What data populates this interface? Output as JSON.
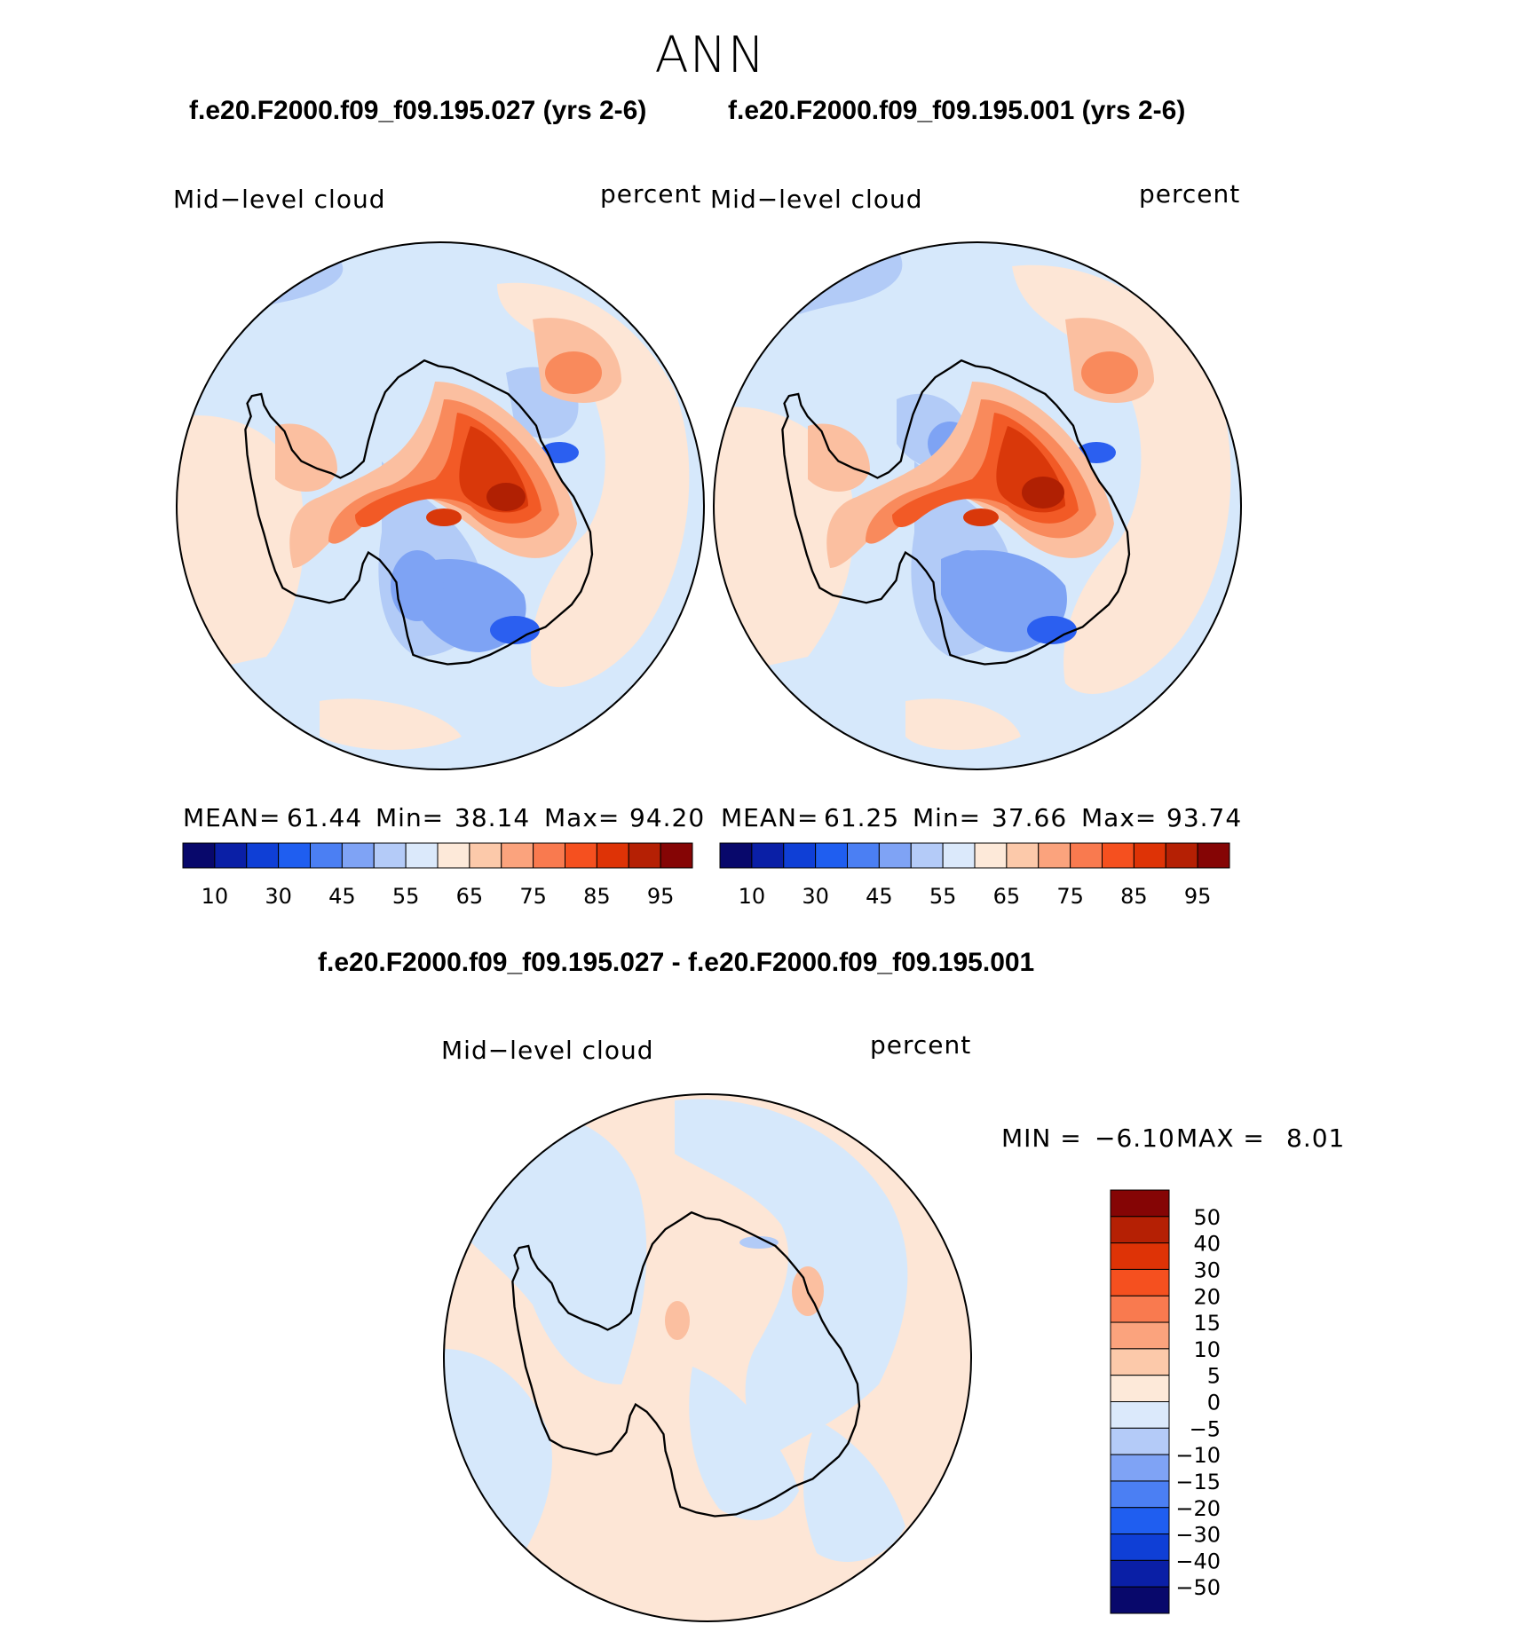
{
  "title": "ANN",
  "panels": [
    {
      "title": "f.e20.F2000.f09_f09.195.027 (yrs 2-6)",
      "variable": "Mid−level cloud",
      "units": "percent",
      "stats": {
        "mean_label": "MEAN=",
        "mean": "61.44",
        "min_label": "Min=",
        "min": "38.14",
        "max_label": "Max=",
        "max": "94.20"
      }
    },
    {
      "title": "f.e20.F2000.f09_f09.195.001 (yrs 2-6)",
      "variable": "Mid−level cloud",
      "units": "percent",
      "stats": {
        "mean_label": "MEAN=",
        "mean": "61.25",
        "min_label": "Min=",
        "min": "37.66",
        "max_label": "Max=",
        "max": "93.74"
      }
    },
    {
      "title": "f.e20.F2000.f09_f09.195.027 - f.e20.F2000.f09_f09.195.001",
      "variable": "Mid−level cloud",
      "units": "percent",
      "stats": {
        "min_label": "MIN =",
        "min": "−6.10",
        "max_label": "MAX =",
        "max": "8.01"
      }
    }
  ],
  "colorbar_abs": {
    "colors": [
      "#08086b",
      "#0a1fa6",
      "#0f3fd6",
      "#1f5ef0",
      "#4b7ff3",
      "#7fa3f5",
      "#b4cbf8",
      "#dbe9fb",
      "#fde9d9",
      "#fcc9aa",
      "#fba37d",
      "#f97a4f",
      "#f5501f",
      "#de3306",
      "#b52004",
      "#850505"
    ],
    "tick_labels": [
      "10",
      "30",
      "45",
      "55",
      "65",
      "75",
      "85",
      "95"
    ]
  },
  "colorbar_diff": {
    "colors": [
      "#850505",
      "#b52004",
      "#de3306",
      "#f5501f",
      "#f97a4f",
      "#fba37d",
      "#fcc9aa",
      "#fde9d9",
      "#dbe9fb",
      "#b4cbf8",
      "#7fa3f5",
      "#4b7ff3",
      "#1f5ef0",
      "#0f3fd6",
      "#0a1fa6",
      "#08086b"
    ],
    "tick_labels": [
      "50",
      "40",
      "30",
      "20",
      "15",
      "10",
      "5",
      "0",
      "−5",
      "−10",
      "−15",
      "−20",
      "−30",
      "−40",
      "−50"
    ]
  },
  "map_colors": {
    "light_blue": "#d6e8fb",
    "mid_blue": "#b2cbf7",
    "blue": "#7ea3f4",
    "dark_blue": "#2b5ff0",
    "peach": "#fde6d6",
    "salmon": "#fbbfa0",
    "orange": "#f98a5c",
    "red_orange": "#f25a26",
    "red": "#d9380a",
    "dark_red": "#b02003"
  }
}
